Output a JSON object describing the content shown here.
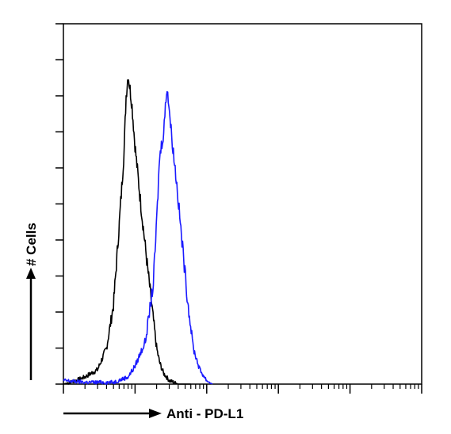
{
  "chart_data": {
    "type": "line",
    "title": "",
    "xlabel": "Anti - PD-L1",
    "ylabel": "# Cells",
    "x_scale": "log",
    "xlim": [
      1,
      100000
    ],
    "ylim": [
      0,
      100
    ],
    "grid": false,
    "legend": "none",
    "series": [
      {
        "color": "#000000",
        "x": [
          1,
          1.5,
          2,
          3,
          4,
          5,
          6,
          7,
          7.5,
          8,
          9,
          10,
          12,
          15,
          18,
          20,
          22,
          25,
          30,
          40,
          60
        ],
        "y": [
          0,
          1,
          2,
          4,
          10,
          22,
          44,
          64,
          80,
          86,
          78,
          66,
          50,
          32,
          18,
          10,
          6,
          3,
          1,
          0,
          0
        ]
      },
      {
        "color": "#1a1aff",
        "x": [
          1,
          2,
          5,
          8,
          10,
          14,
          18,
          20,
          22,
          25,
          28,
          32,
          38,
          45,
          55,
          65,
          80,
          100,
          120
        ],
        "y": [
          1,
          0.5,
          0.5,
          2,
          5,
          12,
          28,
          45,
          63,
          70,
          83,
          70,
          56,
          40,
          22,
          10,
          4,
          1,
          0
        ]
      }
    ],
    "colors": {
      "isotype": "#000000",
      "sample": "#1a1aff",
      "axis": "#000000"
    }
  }
}
